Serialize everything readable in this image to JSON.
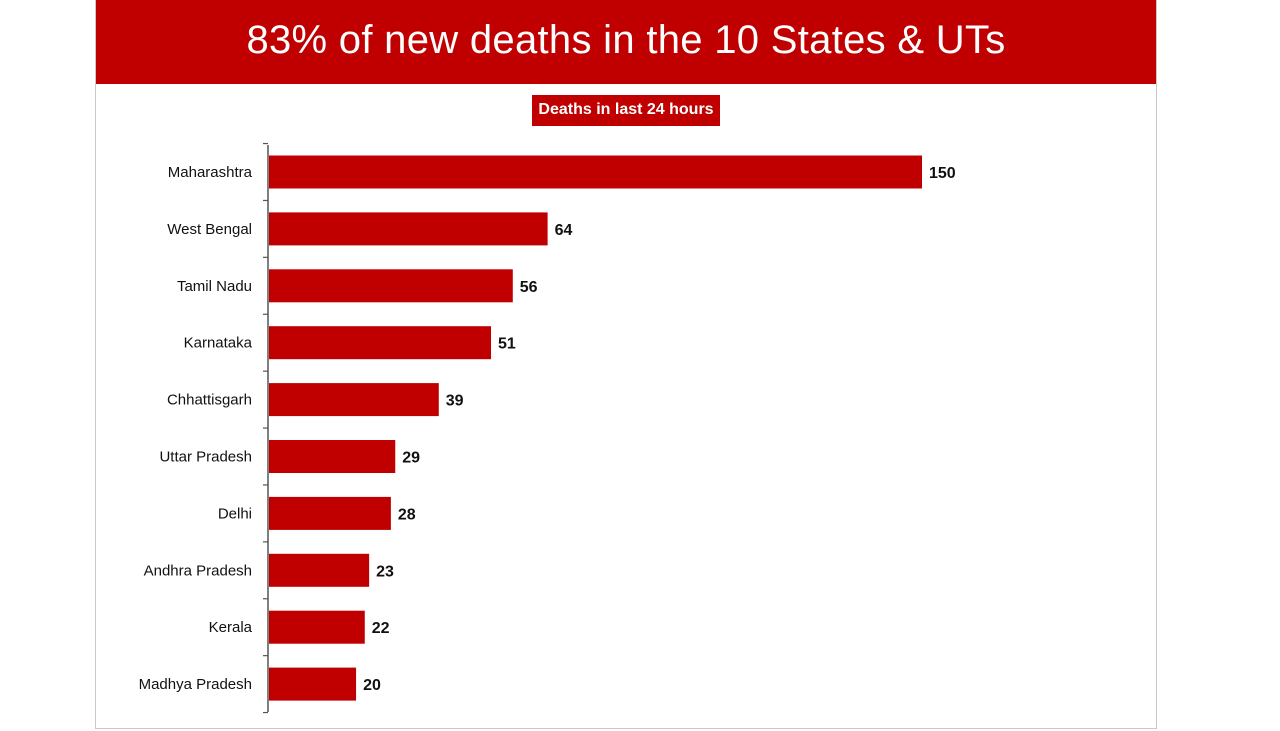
{
  "header": {
    "title": "83% of new deaths in the 10 States & UTs"
  },
  "chart_data": {
    "type": "bar",
    "orientation": "horizontal",
    "title": "83% of new deaths in the 10 States & UTs",
    "subtitle": "Deaths in last 24 hours",
    "categories": [
      "Maharashtra",
      "West Bengal",
      "Tamil Nadu",
      "Karnataka",
      "Chhattisgarh",
      "Uttar Pradesh",
      "Delhi",
      "Andhra Pradesh",
      "Kerala",
      "Madhya Pradesh"
    ],
    "values": [
      150,
      64,
      56,
      51,
      39,
      29,
      28,
      23,
      22,
      20
    ],
    "xlim": [
      0,
      150
    ],
    "grid": false,
    "legend": "none",
    "data_labels": true,
    "colors": {
      "bar": "#c00000",
      "banner": "#c00000",
      "axis": "#555555"
    }
  }
}
